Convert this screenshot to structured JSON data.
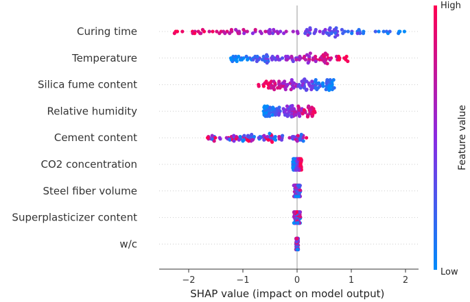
{
  "chart_data": {
    "type": "scatter",
    "subtype": "shap-beeswarm",
    "title": "",
    "xlabel": "SHAP value (impact on model output)",
    "ylabel": "",
    "xlim": [
      -2.6,
      2.2
    ],
    "xticks": [
      -2,
      -1,
      0,
      1,
      2
    ],
    "xtick_labels": [
      "−2",
      "−1",
      "0",
      "1",
      "2"
    ],
    "grid": "horizontal dotted row lines",
    "features": [
      {
        "name": "Curing time",
        "min": -2.3,
        "max": 2.0,
        "low_side": "positive",
        "spread": 1.0
      },
      {
        "name": "Temperature",
        "min": -1.25,
        "max": 0.95,
        "low_side": "negative",
        "spread": 0.9
      },
      {
        "name": "Silica fume content",
        "min": -0.72,
        "max": 0.7,
        "low_side": "positive",
        "spread": 0.9
      },
      {
        "name": "Relative humidity",
        "min": -0.62,
        "max": 0.35,
        "low_side": "negative",
        "spread": 0.7
      },
      {
        "name": "Cement content",
        "min": -1.65,
        "max": 0.18,
        "low_side": "mixed",
        "spread": 0.6
      },
      {
        "name": "CO2 concentration",
        "min": -0.08,
        "max": 0.08,
        "low_side": "negative",
        "spread": 0.5
      },
      {
        "name": "Steel fiber volume",
        "min": -0.06,
        "max": 0.06,
        "low_side": "mixed",
        "spread": 0.4
      },
      {
        "name": "Superplasticizer content",
        "min": -0.06,
        "max": 0.06,
        "low_side": "mixed",
        "spread": 0.4
      },
      {
        "name": "w/c",
        "min": -0.02,
        "max": 0.02,
        "low_side": "mixed",
        "spread": 0.35
      }
    ],
    "colorbar": {
      "title": "Feature value",
      "high_label": "High",
      "low_label": "Low",
      "high_color": "#ff0051",
      "mid_color": "#8a2be2",
      "low_color": "#008bfb"
    },
    "points_per_row": 110
  }
}
